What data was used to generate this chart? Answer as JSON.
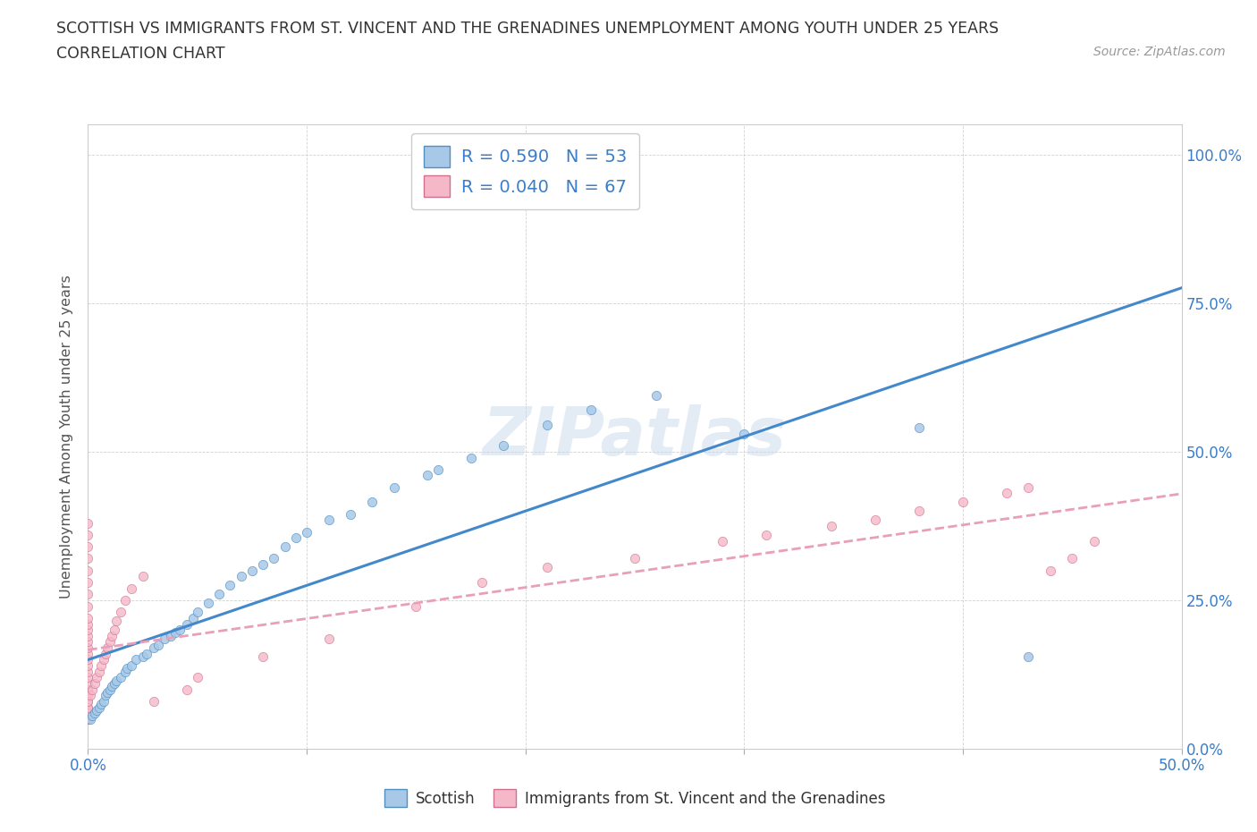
{
  "title_line1": "SCOTTISH VS IMMIGRANTS FROM ST. VINCENT AND THE GRENADINES UNEMPLOYMENT AMONG YOUTH UNDER 25 YEARS",
  "title_line2": "CORRELATION CHART",
  "source_text": "Source: ZipAtlas.com",
  "ylabel": "Unemployment Among Youth under 25 years",
  "xlim": [
    0.0,
    0.5
  ],
  "ylim": [
    0.0,
    1.05
  ],
  "x_ticks": [
    0.0,
    0.1,
    0.2,
    0.3,
    0.4,
    0.5
  ],
  "x_tick_labels": [
    "0.0%",
    "",
    "",
    "",
    "",
    "50.0%"
  ],
  "y_ticks": [
    0.0,
    0.25,
    0.5,
    0.75,
    1.0
  ],
  "y_tick_labels": [
    "0.0%",
    "25.0%",
    "50.0%",
    "75.0%",
    "100.0%"
  ],
  "scottish_color": "#a8c8e8",
  "scottish_edge_color": "#5090c0",
  "immigrant_color": "#f5b8c8",
  "immigrant_edge_color": "#d07090",
  "scottish_line_color": "#4488cc",
  "immigrant_line_color": "#e8a0b8",
  "r_scottish": 0.59,
  "n_scottish": 53,
  "r_immigrant": 0.04,
  "n_immigrant": 67,
  "watermark": "ZIPatlas",
  "scottish_x": [
    0.001,
    0.002,
    0.003,
    0.004,
    0.005,
    0.006,
    0.007,
    0.008,
    0.009,
    0.01,
    0.011,
    0.012,
    0.013,
    0.015,
    0.017,
    0.018,
    0.02,
    0.022,
    0.025,
    0.027,
    0.03,
    0.032,
    0.035,
    0.038,
    0.04,
    0.042,
    0.045,
    0.048,
    0.05,
    0.055,
    0.06,
    0.065,
    0.07,
    0.075,
    0.08,
    0.085,
    0.09,
    0.095,
    0.1,
    0.11,
    0.12,
    0.13,
    0.14,
    0.155,
    0.16,
    0.175,
    0.19,
    0.21,
    0.23,
    0.26,
    0.3,
    0.38,
    0.43
  ],
  "scottish_y": [
    0.05,
    0.055,
    0.06,
    0.065,
    0.07,
    0.075,
    0.08,
    0.09,
    0.095,
    0.1,
    0.105,
    0.11,
    0.115,
    0.12,
    0.13,
    0.135,
    0.14,
    0.15,
    0.155,
    0.16,
    0.17,
    0.175,
    0.185,
    0.19,
    0.195,
    0.2,
    0.21,
    0.22,
    0.23,
    0.245,
    0.26,
    0.275,
    0.29,
    0.3,
    0.31,
    0.32,
    0.34,
    0.355,
    0.365,
    0.385,
    0.395,
    0.415,
    0.44,
    0.46,
    0.47,
    0.49,
    0.51,
    0.545,
    0.57,
    0.595,
    0.53,
    0.54,
    0.155
  ],
  "immigrant_x": [
    0.0,
    0.0,
    0.0,
    0.0,
    0.0,
    0.0,
    0.0,
    0.0,
    0.0,
    0.0,
    0.0,
    0.0,
    0.0,
    0.0,
    0.0,
    0.0,
    0.0,
    0.0,
    0.0,
    0.0,
    0.0,
    0.0,
    0.0,
    0.0,
    0.0,
    0.0,
    0.0,
    0.0,
    0.0,
    0.0,
    0.001,
    0.002,
    0.003,
    0.004,
    0.005,
    0.006,
    0.007,
    0.008,
    0.009,
    0.01,
    0.011,
    0.012,
    0.013,
    0.015,
    0.017,
    0.02,
    0.025,
    0.03,
    0.045,
    0.05,
    0.08,
    0.11,
    0.15,
    0.18,
    0.21,
    0.25,
    0.29,
    0.31,
    0.34,
    0.36,
    0.38,
    0.4,
    0.42,
    0.43,
    0.44,
    0.45,
    0.46
  ],
  "immigrant_y": [
    0.05,
    0.06,
    0.07,
    0.08,
    0.09,
    0.1,
    0.11,
    0.12,
    0.13,
    0.14,
    0.15,
    0.16,
    0.17,
    0.18,
    0.19,
    0.2,
    0.21,
    0.22,
    0.24,
    0.26,
    0.28,
    0.3,
    0.32,
    0.34,
    0.36,
    0.38,
    0.05,
    0.06,
    0.07,
    0.08,
    0.09,
    0.1,
    0.11,
    0.12,
    0.13,
    0.14,
    0.15,
    0.16,
    0.17,
    0.18,
    0.19,
    0.2,
    0.215,
    0.23,
    0.25,
    0.27,
    0.29,
    0.08,
    0.1,
    0.12,
    0.155,
    0.185,
    0.24,
    0.28,
    0.305,
    0.32,
    0.35,
    0.36,
    0.375,
    0.385,
    0.4,
    0.415,
    0.43,
    0.44,
    0.3,
    0.32,
    0.35
  ]
}
